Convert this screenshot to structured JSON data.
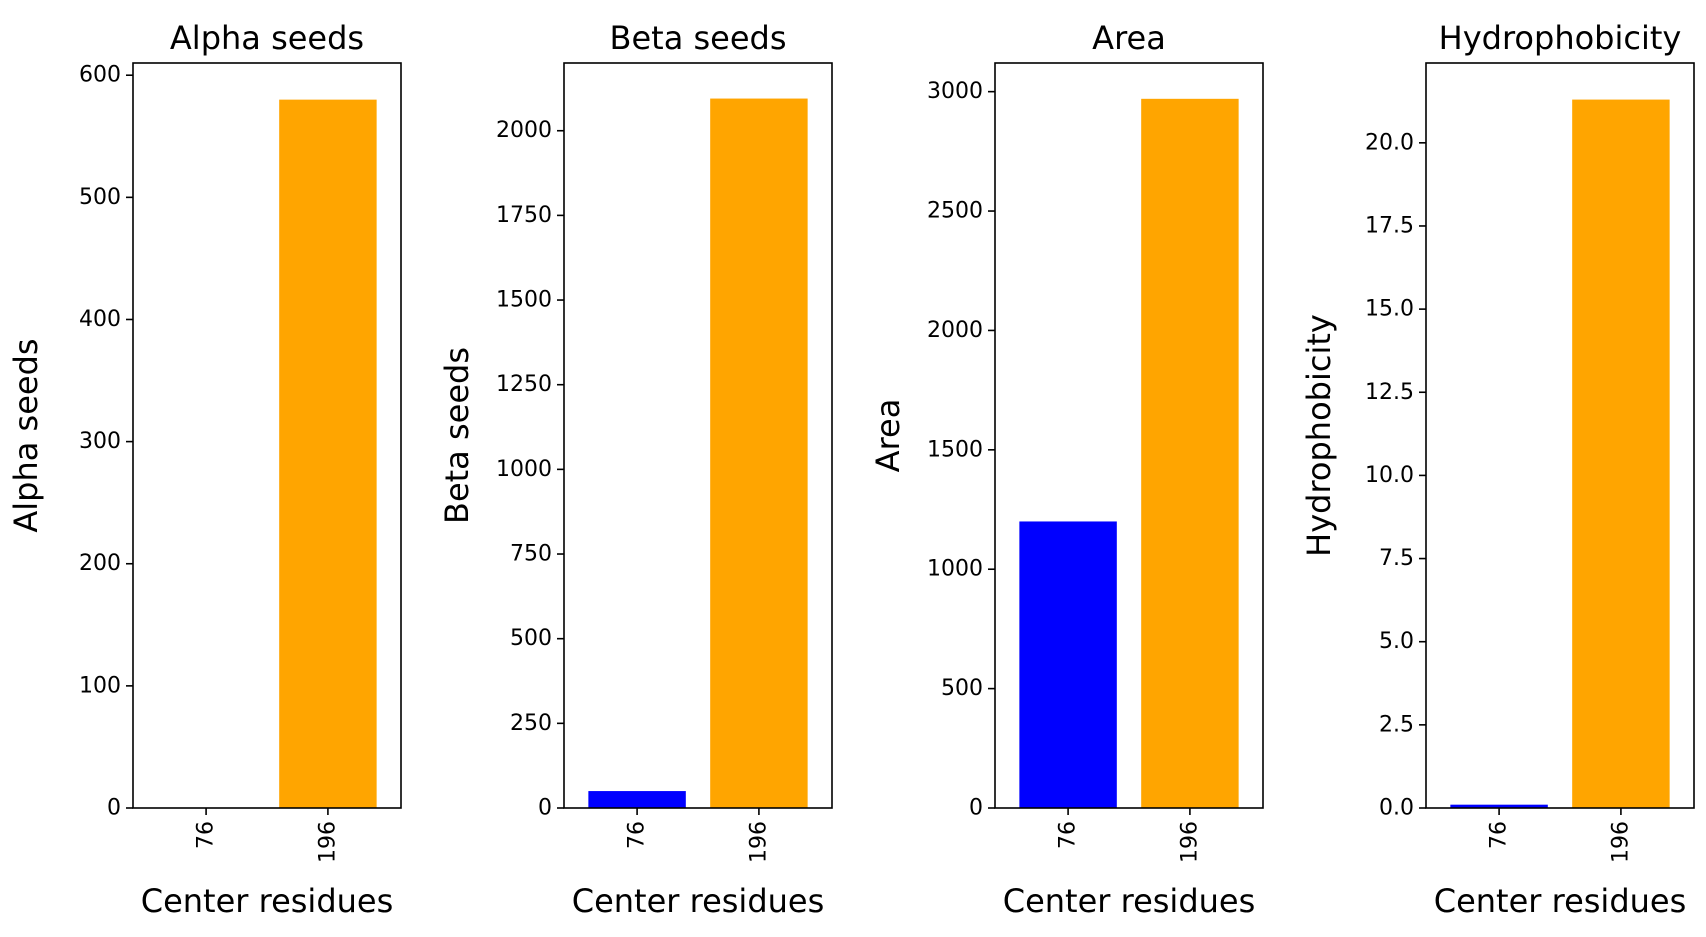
{
  "chart_data": [
    {
      "type": "bar",
      "title": "Alpha seeds",
      "xlabel": "Center residues",
      "ylabel": "Alpha seeds",
      "categories": [
        "76",
        "196"
      ],
      "values": [
        0,
        580
      ],
      "colors": [
        "#0000ff",
        "#ffa500"
      ],
      "ylim": [
        0,
        610
      ],
      "yticks": [
        0,
        100,
        200,
        300,
        400,
        500,
        600
      ],
      "ytick_labels": [
        "0",
        "100",
        "200",
        "300",
        "400",
        "500",
        "600"
      ],
      "grid": false
    },
    {
      "type": "bar",
      "title": "Beta seeds",
      "xlabel": "Center residues",
      "ylabel": "Beta seeds",
      "categories": [
        "76",
        "196"
      ],
      "values": [
        50,
        2095
      ],
      "colors": [
        "#0000ff",
        "#ffa500"
      ],
      "ylim": [
        0,
        2200
      ],
      "yticks": [
        0,
        250,
        500,
        750,
        1000,
        1250,
        1500,
        1750,
        2000
      ],
      "ytick_labels": [
        "0",
        "250",
        "500",
        "750",
        "1000",
        "1250",
        "1500",
        "1750",
        "2000"
      ],
      "grid": false
    },
    {
      "type": "bar",
      "title": "Area",
      "xlabel": "Center residues",
      "ylabel": "Area",
      "categories": [
        "76",
        "196"
      ],
      "values": [
        1200,
        2970
      ],
      "colors": [
        "#0000ff",
        "#ffa500"
      ],
      "ylim": [
        0,
        3120
      ],
      "yticks": [
        0,
        500,
        1000,
        1500,
        2000,
        2500,
        3000
      ],
      "ytick_labels": [
        "0",
        "500",
        "1000",
        "1500",
        "2000",
        "2500",
        "3000"
      ],
      "grid": false
    },
    {
      "type": "bar",
      "title": "Hydrophobicity",
      "xlabel": "Center residues",
      "ylabel": "Hydrophobicity",
      "categories": [
        "76",
        "196"
      ],
      "values": [
        0.1,
        21.3
      ],
      "colors": [
        "#0000ff",
        "#ffa500"
      ],
      "ylim": [
        0,
        22.4
      ],
      "yticks": [
        0,
        2.5,
        5,
        7.5,
        10,
        12.5,
        15,
        17.5,
        20
      ],
      "ytick_labels": [
        "0.0",
        "2.5",
        "5.0",
        "7.5",
        "10.0",
        "12.5",
        "15.0",
        "17.5",
        "20.0"
      ],
      "grid": false
    }
  ]
}
